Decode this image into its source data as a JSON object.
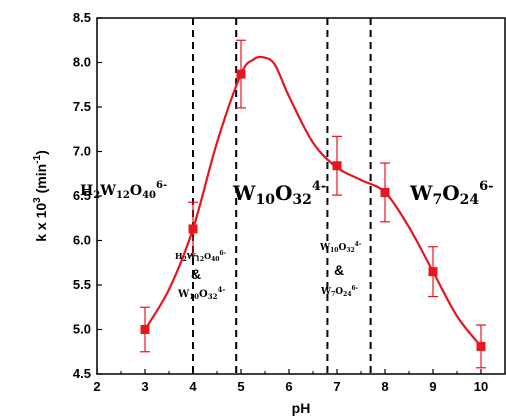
{
  "chart_data": {
    "type": "line",
    "xlabel": "pH",
    "ylabel": "k x 10",
    "ylabel_sup": "3",
    "ylabel_unit": " (min",
    "ylabel_unit_sup": "-1",
    "ylabel_close": ")",
    "xlim": [
      2,
      10.5
    ],
    "ylim": [
      4.5,
      8.5
    ],
    "x_ticks": [
      "2",
      "3",
      "4",
      "5",
      "6",
      "7",
      "8",
      "9",
      "10"
    ],
    "y_ticks": [
      "4.5",
      "5.0",
      "5.5",
      "6.0",
      "6.5",
      "7.0",
      "7.5",
      "8.0",
      "8.5"
    ],
    "grid": false,
    "marker_color": "#e8141e",
    "line_color": "#e8141e",
    "points": [
      {
        "x": 3,
        "y": 5.0,
        "err": 0.25
      },
      {
        "x": 4,
        "y": 6.13,
        "err": 0.3
      },
      {
        "x": 5,
        "y": 7.87,
        "err": 0.38
      },
      {
        "x": 7,
        "y": 6.84,
        "err": 0.33
      },
      {
        "x": 8,
        "y": 6.54,
        "err": 0.33
      },
      {
        "x": 9,
        "y": 5.65,
        "err": 0.28
      },
      {
        "x": 10,
        "y": 4.81,
        "err": 0.24
      }
    ],
    "fit_curve": [
      [
        3,
        5.0
      ],
      [
        3.5,
        5.45
      ],
      [
        4,
        6.13
      ],
      [
        4.5,
        7.1
      ],
      [
        5,
        7.87
      ],
      [
        5.25,
        8.03
      ],
      [
        5.45,
        8.06
      ],
      [
        5.7,
        7.98
      ],
      [
        6,
        7.62
      ],
      [
        6.5,
        7.1
      ],
      [
        7,
        6.82
      ],
      [
        7.5,
        6.68
      ],
      [
        8,
        6.54
      ],
      [
        8.5,
        6.15
      ],
      [
        9,
        5.65
      ],
      [
        9.5,
        5.15
      ],
      [
        10,
        4.81
      ]
    ],
    "dividers": [
      4.0,
      4.9,
      6.8,
      7.7
    ],
    "annotations": {
      "left_region": {
        "main": "H",
        "sub1": "2",
        "mid": "W",
        "sub2": "12",
        "o": "O",
        "sub3": "40",
        "sup": "6-"
      },
      "center_region": {
        "main": "W",
        "sub1": "10",
        "o": "O",
        "sub2": "32",
        "sup": "4-"
      },
      "right_region": {
        "main": "W",
        "sub1": "7",
        "o": "O",
        "sub2": "24",
        "sup": "6-"
      },
      "mix1_top": {
        "main": "H",
        "sub1": "2",
        "mid": "W",
        "sub2": "12",
        "o": "O",
        "sub3": "40",
        "sup": "6-"
      },
      "mix1_amp": "&",
      "mix1_bottom": {
        "main": "W",
        "sub1": "10",
        "o": "O",
        "sub2": "32",
        "sup": "4-"
      },
      "mix2_top": {
        "main": "W",
        "sub1": "10",
        "o": "O",
        "sub2": "32",
        "sup": "4-"
      },
      "mix2_amp": "&",
      "mix2_bottom": {
        "main": "W",
        "sub1": "7",
        "o": "O",
        "sub2": "24",
        "sup": "6-"
      }
    }
  }
}
